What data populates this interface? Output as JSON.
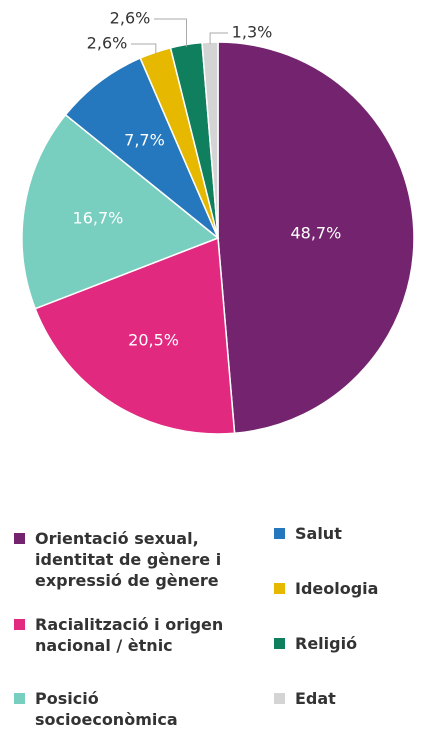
{
  "chart_data": {
    "type": "pie",
    "categories": [
      "Orientació sexual, identitat de gènere i expressió de gènere",
      "Racialització i origen nacional / ètnic",
      "Posició socioeconòmica",
      "Salut",
      "Ideologia",
      "Religió",
      "Edat"
    ],
    "values": [
      48.7,
      20.5,
      16.7,
      7.7,
      2.6,
      2.6,
      1.3
    ],
    "value_labels": [
      "48,7%",
      "20,5%",
      "16,7%",
      "7,7%",
      "2,6%",
      "2,6%",
      "1,3%"
    ],
    "colors": [
      "#74246f",
      "#e0297f",
      "#79cfbf",
      "#2578be",
      "#e6b800",
      "#0f7f5e",
      "#d4d4d4"
    ]
  }
}
